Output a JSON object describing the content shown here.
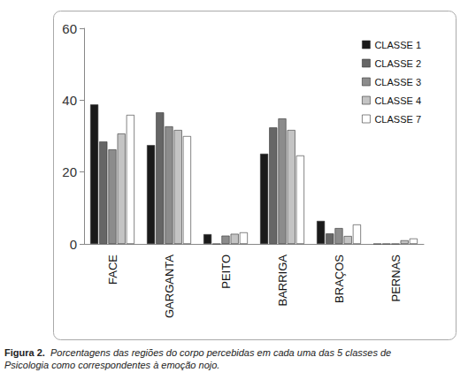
{
  "chart_data": {
    "type": "bar",
    "title": "Figura 2.",
    "subtitle": "Porcentagens das regiões do corpo percebidas em cada uma das 5 classes de Psicologia como correspondentes à emoção nojo.",
    "categories": [
      "FACE",
      "GARGANTA",
      "PEITO",
      "BARRIGA",
      "BRAÇOS",
      "PERNAS"
    ],
    "series": [
      {
        "name": "CLASSE 1",
        "color": "#1a1a1a",
        "values": [
          38.8,
          27.5,
          2.7,
          25.1,
          6.4,
          0
        ]
      },
      {
        "name": "CLASSE 2",
        "color": "#666666",
        "values": [
          28.5,
          36.6,
          0,
          32.4,
          2.9,
          0
        ]
      },
      {
        "name": "CLASSE 3",
        "color": "#8c8c8c",
        "values": [
          26.3,
          32.7,
          2.3,
          34.9,
          4.4,
          0
        ]
      },
      {
        "name": "CLASSE 4",
        "color": "#c4c4c4",
        "values": [
          30.7,
          31.7,
          2.8,
          31.7,
          2.2,
          1.0
        ]
      },
      {
        "name": "CLASSE 7",
        "color": "#ffffff",
        "values": [
          35.9,
          30.0,
          3.2,
          24.6,
          5.4,
          1.5
        ]
      }
    ],
    "ylim": [
      0,
      60
    ],
    "yticks": [
      0,
      20,
      40,
      60
    ],
    "grid": false,
    "legend": "upper right"
  }
}
